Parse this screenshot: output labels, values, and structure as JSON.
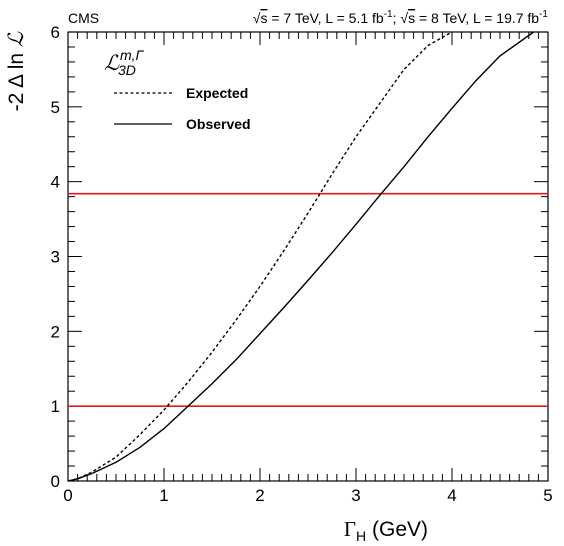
{
  "chart_data": {
    "type": "line",
    "header_left": "CMS",
    "header_right_parts": {
      "sqrt_s_1": "s",
      "energy_1": " = 7 TeV, L = 5.1 fb",
      "sep": "; ",
      "sqrt_s_2": "s",
      "energy_2": " = 8 TeV, L = 19.7 fb",
      "sup": "-1"
    },
    "xlabel": {
      "symbol": "Γ",
      "sub": "H",
      "rest": " (GeV)"
    },
    "ylabel": {
      "pre": "-2 Δ ln ",
      "symbol": "ℒ"
    },
    "legend_title": {
      "symbol": "ℒ",
      "sub": "3D",
      "sup": "m,Γ"
    },
    "xlim": [
      0,
      5
    ],
    "ylim": [
      0,
      6
    ],
    "xticks": [
      "0",
      "1",
      "2",
      "3",
      "4",
      "5"
    ],
    "yticks": [
      "0",
      "1",
      "2",
      "3",
      "4",
      "5",
      "6"
    ],
    "series": [
      {
        "name": "Expected",
        "style": "dashed",
        "color": "#000000",
        "x": [
          0,
          0.1,
          0.25,
          0.5,
          0.75,
          1.0,
          1.25,
          1.5,
          1.75,
          2.0,
          2.25,
          2.5,
          2.75,
          3.0,
          3.25,
          3.5,
          3.75,
          4.0
        ],
        "y": [
          0,
          0.03,
          0.12,
          0.32,
          0.62,
          0.95,
          1.32,
          1.72,
          2.15,
          2.6,
          3.08,
          3.58,
          4.1,
          4.6,
          5.05,
          5.5,
          5.82,
          6.0
        ]
      },
      {
        "name": "Observed",
        "style": "solid",
        "color": "#000000",
        "x": [
          0,
          0.1,
          0.25,
          0.5,
          0.75,
          1.0,
          1.25,
          1.5,
          1.75,
          2.0,
          2.25,
          2.5,
          2.75,
          3.0,
          3.25,
          3.5,
          3.75,
          4.0,
          4.25,
          4.5,
          4.85
        ],
        "y": [
          0,
          0.03,
          0.1,
          0.25,
          0.45,
          0.7,
          1.0,
          1.3,
          1.62,
          1.97,
          2.32,
          2.68,
          3.05,
          3.43,
          3.82,
          4.2,
          4.6,
          4.98,
          5.35,
          5.68,
          6.0
        ]
      }
    ],
    "reference_lines": [
      {
        "y": 1.0,
        "color": "#e31a1c"
      },
      {
        "y": 3.84,
        "color": "#e31a1c"
      }
    ]
  }
}
